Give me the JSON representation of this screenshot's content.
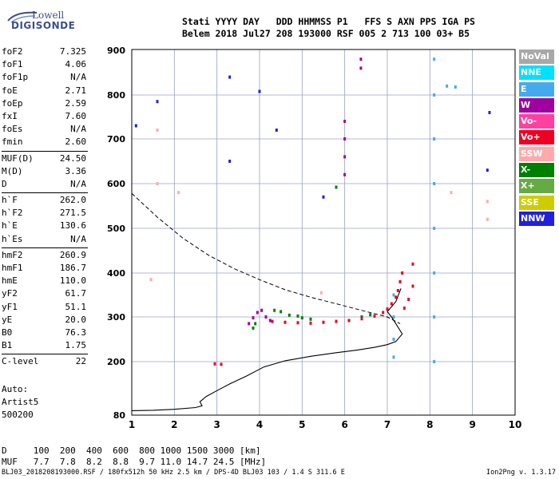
{
  "logo": {
    "line1": "Lowell",
    "line2": "DIGISONDE"
  },
  "header": {
    "row1": "Stati YYYY DAY   DDD HHMMSS P1   FFS S AXN PPS IGA PS",
    "row2": "Belem 2018 Jul27 208 193000 RSF 005 2 713 100 03+ B5"
  },
  "params": {
    "group1": [
      {
        "k": "foF2",
        "v": "7.325"
      },
      {
        "k": "foF1",
        "v": "4.06"
      },
      {
        "k": "foF1p",
        "v": "N/A"
      },
      {
        "k": "foE",
        "v": "2.71"
      },
      {
        "k": "foEp",
        "v": "2.59"
      },
      {
        "k": "fxI",
        "v": "7.60"
      },
      {
        "k": "foEs",
        "v": "N/A"
      },
      {
        "k": "fmin",
        "v": "2.60"
      }
    ],
    "group2": [
      {
        "k": "MUF(D)",
        "v": "24.50"
      },
      {
        "k": "M(D)",
        "v": "3.36"
      },
      {
        "k": "D",
        "v": "N/A"
      }
    ],
    "group3": [
      {
        "k": "h`F",
        "v": "262.0"
      },
      {
        "k": "h`F2",
        "v": "271.5"
      },
      {
        "k": "h`E",
        "v": "130.6"
      },
      {
        "k": "h`Es",
        "v": "N/A"
      }
    ],
    "group4": [
      {
        "k": "hmF2",
        "v": "260.9"
      },
      {
        "k": "hmF1",
        "v": "186.7"
      },
      {
        "k": "hmE",
        "v": "110.0"
      },
      {
        "k": "yF2",
        "v": "61.7"
      },
      {
        "k": "yF1",
        "v": "51.1"
      },
      {
        "k": "yE",
        "v": "20.0"
      },
      {
        "k": "B0",
        "v": "76.3"
      },
      {
        "k": "B1",
        "v": "1.75"
      }
    ],
    "group5": [
      {
        "k": "C-level",
        "v": "22"
      }
    ]
  },
  "auto": {
    "l1": "Auto:",
    "l2": "Artist5",
    "l3": "500200"
  },
  "legend": [
    {
      "label": "NoVal",
      "color": "#a8a8a8"
    },
    {
      "label": "NNE",
      "color": "#00e0ff"
    },
    {
      "label": "E",
      "color": "#44aaee"
    },
    {
      "label": "W",
      "color": "#a000a0"
    },
    {
      "label": "Vo-",
      "color": "#ff40a0"
    },
    {
      "label": "Vo+",
      "color": "#ee0020"
    },
    {
      "label": "SSW",
      "color": "#ffaaaa"
    },
    {
      "label": "X-",
      "color": "#008000"
    },
    {
      "label": "X+",
      "color": "#66aa44"
    },
    {
      "label": "SSE",
      "color": "#cccc00"
    },
    {
      "label": "NNW",
      "color": "#2020dd"
    }
  ],
  "dmuf": {
    "row1": "D     100  200  400  600  800 1000 1500 3000 [km]",
    "row2": "MUF   7.7  7.8  8.2  8.8  9.7 11.0 14.7 24.5 [MHz]"
  },
  "footer": {
    "left": "BLJ03_2018208193000.RSF / 180fx512h 50 kHz 2.5 km / DPS-4D BLJ03 103 / 1.4 S 311.6 E",
    "right": "Ion2Png v. 1.3.17"
  },
  "chart_data": {
    "type": "scatter",
    "xlim": [
      1,
      10
    ],
    "ylim": [
      80,
      900
    ],
    "xticks": [
      1,
      2,
      3,
      4,
      5,
      6,
      7,
      8,
      9,
      10
    ],
    "yticks": [
      80,
      200,
      300,
      400,
      500,
      600,
      700,
      800,
      900
    ],
    "grid": true,
    "profile": [
      [
        1.0,
        90
      ],
      [
        1.5,
        91
      ],
      [
        2.0,
        93
      ],
      [
        2.5,
        97
      ],
      [
        2.65,
        101
      ],
      [
        2.6,
        110
      ],
      [
        2.75,
        122
      ],
      [
        3.0,
        135
      ],
      [
        3.3,
        150
      ],
      [
        3.7,
        168
      ],
      [
        4.1,
        188
      ],
      [
        4.6,
        202
      ],
      [
        5.2,
        212
      ],
      [
        5.8,
        220
      ],
      [
        6.3,
        226
      ],
      [
        6.7,
        232
      ],
      [
        7.0,
        238
      ],
      [
        7.2,
        245
      ],
      [
        7.35,
        262
      ],
      [
        7.2,
        285
      ],
      [
        7.1,
        300
      ],
      [
        7.0,
        312
      ],
      [
        7.2,
        335
      ],
      [
        7.32,
        365
      ]
    ],
    "model": [
      [
        1.0,
        578
      ],
      [
        1.6,
        525
      ],
      [
        2.2,
        478
      ],
      [
        2.8,
        440
      ],
      [
        3.4,
        410
      ],
      [
        4.0,
        385
      ],
      [
        4.6,
        362
      ],
      [
        5.2,
        345
      ],
      [
        5.8,
        330
      ],
      [
        6.4,
        315
      ],
      [
        7.0,
        300
      ],
      [
        7.3,
        285
      ]
    ],
    "traces": [
      {
        "name": "X-",
        "points": [
          [
            3.85,
            275
          ],
          [
            3.9,
            285
          ],
          [
            4.35,
            315
          ],
          [
            4.5,
            312
          ],
          [
            4.7,
            304
          ],
          [
            4.9,
            302
          ],
          [
            5.0,
            298
          ],
          [
            5.2,
            295
          ],
          [
            5.8,
            592
          ],
          [
            6.4,
            300
          ],
          [
            6.6,
            305
          ]
        ]
      },
      {
        "name": "Vo+",
        "points": [
          [
            2.95,
            195
          ],
          [
            3.1,
            194
          ],
          [
            4.3,
            290
          ],
          [
            4.6,
            288
          ],
          [
            4.9,
            287
          ],
          [
            5.2,
            286
          ],
          [
            5.5,
            288
          ],
          [
            5.8,
            290
          ],
          [
            6.1,
            292
          ],
          [
            6.4,
            296
          ],
          [
            6.7,
            302
          ],
          [
            6.9,
            310
          ],
          [
            7.0,
            318
          ],
          [
            7.1,
            330
          ],
          [
            7.2,
            345
          ],
          [
            7.25,
            360
          ],
          [
            7.3,
            380
          ],
          [
            7.35,
            400
          ],
          [
            7.4,
            320
          ],
          [
            7.5,
            340
          ],
          [
            7.6,
            370
          ],
          [
            7.6,
            420
          ]
        ]
      },
      {
        "name": "W",
        "points": [
          [
            3.75,
            285
          ],
          [
            3.85,
            298
          ],
          [
            3.95,
            310
          ],
          [
            4.05,
            315
          ],
          [
            4.15,
            300
          ],
          [
            4.25,
            292
          ],
          [
            6.0,
            620
          ],
          [
            6.0,
            660
          ],
          [
            6.0,
            700
          ],
          [
            6.0,
            740
          ],
          [
            6.38,
            860
          ],
          [
            6.38,
            880
          ]
        ]
      },
      {
        "name": "E",
        "points": [
          [
            7.15,
            210
          ],
          [
            7.15,
            250
          ],
          [
            7.15,
            300
          ],
          [
            7.15,
            350
          ],
          [
            8.1,
            200
          ],
          [
            8.1,
            300
          ],
          [
            8.1,
            400
          ],
          [
            8.1,
            500
          ],
          [
            8.1,
            600
          ],
          [
            8.1,
            700
          ],
          [
            8.1,
            800
          ],
          [
            8.1,
            880
          ],
          [
            8.4,
            820
          ],
          [
            8.6,
            818
          ]
        ]
      },
      {
        "name": "SSW",
        "points": [
          [
            1.45,
            385
          ],
          [
            1.6,
            720
          ],
          [
            1.6,
            600
          ],
          [
            2.1,
            580
          ],
          [
            5.45,
            355
          ],
          [
            8.5,
            580
          ],
          [
            9.35,
            520
          ],
          [
            9.35,
            560
          ]
        ]
      },
      {
        "name": "NNW",
        "points": [
          [
            1.1,
            730
          ],
          [
            1.6,
            785
          ],
          [
            3.3,
            840
          ],
          [
            3.3,
            650
          ],
          [
            4.0,
            808
          ],
          [
            4.4,
            720
          ],
          [
            5.5,
            570
          ],
          [
            9.35,
            630
          ],
          [
            9.4,
            760
          ]
        ]
      }
    ]
  }
}
